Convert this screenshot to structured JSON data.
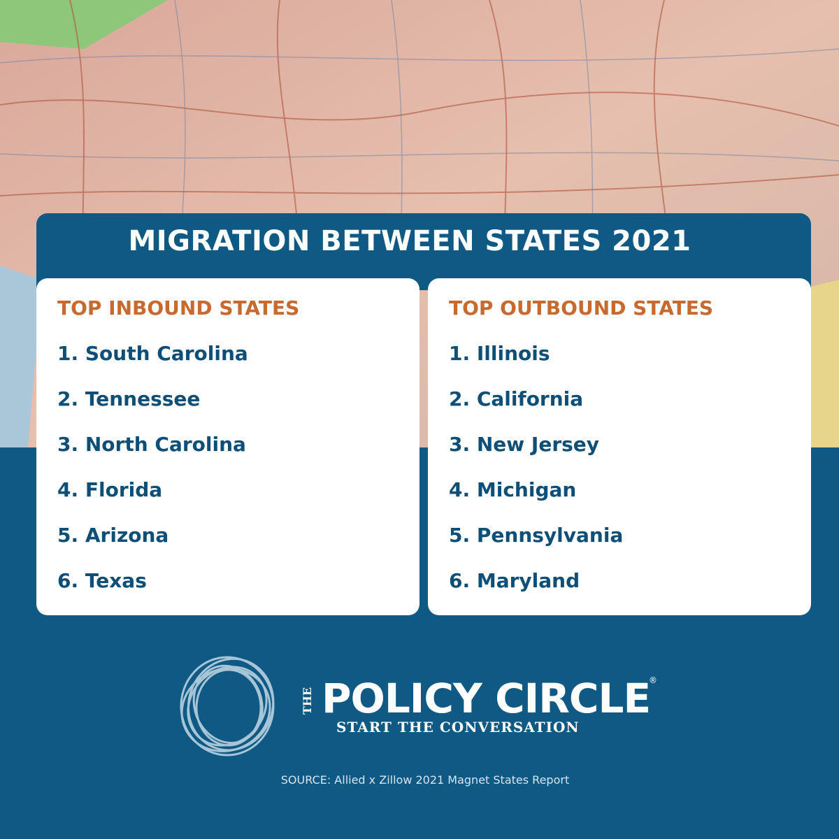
{
  "header": {
    "title": "MIGRATION BETWEEN STATES 2021"
  },
  "lists": [
    {
      "heading": "TOP INBOUND STATES",
      "items": [
        "1. South Carolina",
        "2. Tennessee",
        "3. North Carolina",
        "4. Florida",
        "5. Arizona",
        "6. Texas"
      ]
    },
    {
      "heading": "TOP OUTBOUND STATES",
      "items": [
        "1. Illinois",
        "2. California",
        "3. New Jersey",
        "4. Michigan",
        "5. Pennsylvania",
        "6. Maryland"
      ]
    }
  ],
  "logo": {
    "prefix": "THE",
    "name": "POLICY CIRCLE",
    "mark": "®",
    "tagline": "START THE CONVERSATION"
  },
  "footer": {
    "source": "SOURCE: Allied x Zillow 2021 Magnet States Report"
  }
}
